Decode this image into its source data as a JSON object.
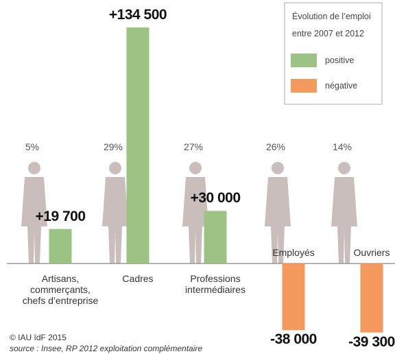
{
  "chart_data": {
    "type": "bar",
    "categories": [
      "Artisans,\ncommerçants,\nchefs d’entreprise",
      "Cadres",
      "Professions\nintermédiaires",
      "Employés",
      "Ouvriers"
    ],
    "values": [
      19700,
      134500,
      30000,
      -38000,
      -39300
    ],
    "value_labels": [
      "+19 700",
      "+134 500",
      "+30 000",
      "-38 000",
      "-39 300"
    ],
    "shares": {
      "values": [
        5,
        29,
        27,
        26,
        14
      ],
      "value_labels": [
        "5%",
        "29%",
        "27%",
        "26%",
        "14%"
      ]
    },
    "legend": {
      "title": "Évolution de l’emploi\nentre 2007 et 2012",
      "position": "upper right",
      "entries": [
        {
          "name": "positive",
          "color": "#9dc384"
        },
        {
          "name": "négative",
          "color": "#f59a5e"
        }
      ]
    },
    "ylim": [
      -50000,
      140000
    ],
    "credit": "© IAU îdF 2015",
    "source": "source : Insee, RP 2012 exploitation complémentaire"
  }
}
